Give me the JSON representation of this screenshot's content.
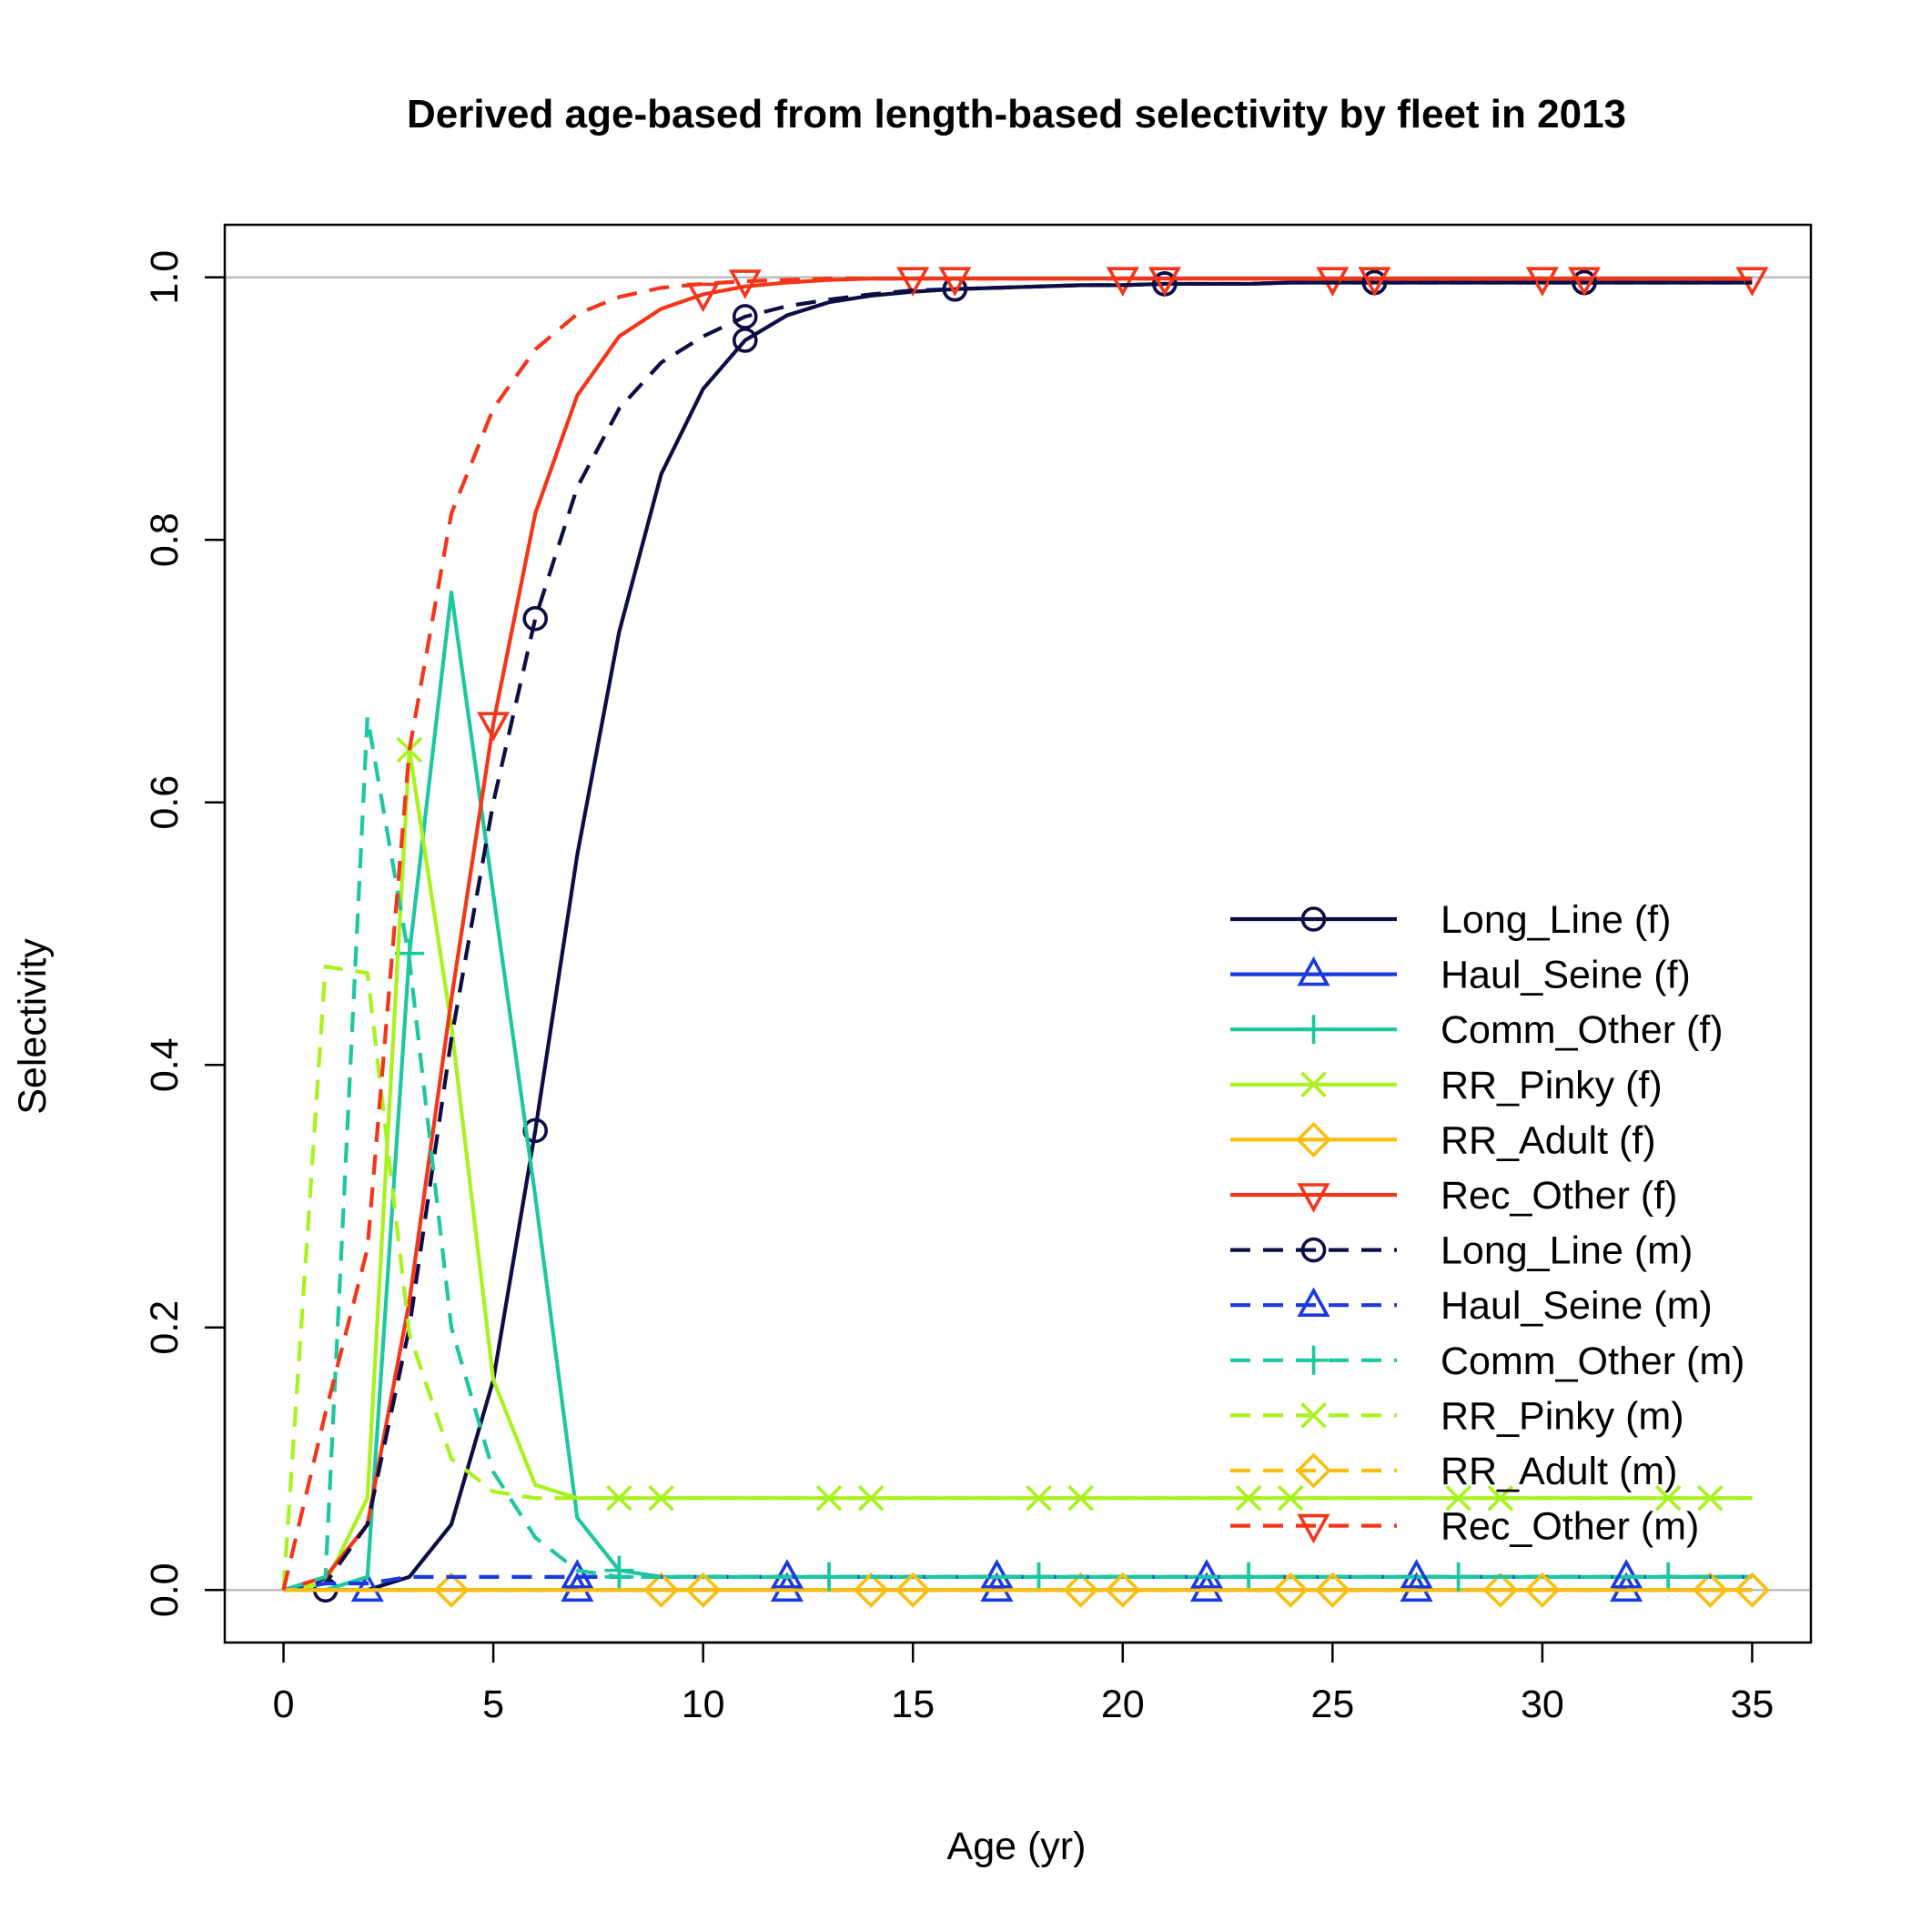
{
  "chart_data": {
    "type": "line",
    "title": "Derived age-based from length-based selectivity by fleet in 2013",
    "xlabel": "Age (yr)",
    "ylabel": "Selectivity",
    "xlim": [
      -1.4,
      36.4
    ],
    "ylim": [
      -0.04,
      1.04
    ],
    "x_ticks": [
      0,
      5,
      10,
      15,
      20,
      25,
      30,
      35
    ],
    "y_ticks": [
      0.0,
      0.2,
      0.4,
      0.6,
      0.8,
      1.0
    ],
    "y_tick_labels": [
      "0.0",
      "0.2",
      "0.4",
      "0.6",
      "0.8",
      "1.0"
    ],
    "reference_lines": [
      0,
      1
    ],
    "legend_position": "right",
    "x": [
      0,
      1,
      2,
      3,
      4,
      5,
      6,
      7,
      8,
      9,
      10,
      11,
      12,
      13,
      14,
      15,
      16,
      17,
      18,
      19,
      20,
      21,
      22,
      23,
      24,
      25,
      26,
      27,
      28,
      29,
      30,
      31,
      32,
      33,
      34,
      35
    ],
    "series": [
      {
        "name": "Long_Line (f)",
        "color": "#0d0d45",
        "dash": "solid",
        "marker": "circle",
        "marker_offset": 1,
        "values": [
          0,
          0,
          0,
          0.01,
          0.05,
          0.16,
          0.35,
          0.56,
          0.73,
          0.85,
          0.915,
          0.952,
          0.971,
          0.981,
          0.986,
          0.989,
          0.991,
          0.992,
          0.993,
          0.994,
          0.994,
          0.995,
          0.995,
          0.995,
          0.996,
          0.996,
          0.996,
          0.996,
          0.996,
          0.996,
          0.996,
          0.996,
          0.996,
          0.996,
          0.996,
          0.996
        ]
      },
      {
        "name": "Haul_Seine (f)",
        "color": "#1a3ae0",
        "dash": "solid",
        "marker": "triangle-up",
        "marker_offset": 2,
        "values": [
          0,
          0,
          0,
          0,
          0,
          0,
          0,
          0,
          0,
          0,
          0,
          0,
          0,
          0,
          0,
          0,
          0,
          0,
          0,
          0,
          0,
          0,
          0,
          0,
          0,
          0,
          0,
          0,
          0,
          0,
          0,
          0,
          0,
          0,
          0,
          0
        ]
      },
      {
        "name": "Comm_Other (f)",
        "color": "#1dc7a0",
        "dash": "solid",
        "marker": "plus",
        "marker_offset": 3,
        "values": [
          0,
          0,
          0.01,
          0.485,
          0.76,
          0.53,
          0.3,
          0.055,
          0.015,
          0.01,
          0.01,
          0.01,
          0.01,
          0.01,
          0.01,
          0.01,
          0.01,
          0.01,
          0.01,
          0.01,
          0.01,
          0.01,
          0.01,
          0.01,
          0.01,
          0.01,
          0.01,
          0.01,
          0.01,
          0.01,
          0.01,
          0.01,
          0.01,
          0.01,
          0.01,
          0.01
        ]
      },
      {
        "name": "RR_Pinky (f)",
        "color": "#a8f21d",
        "dash": "solid",
        "marker": "x",
        "marker_offset": 3,
        "values": [
          0,
          0.005,
          0.07,
          0.64,
          0.43,
          0.16,
          0.08,
          0.07,
          0.07,
          0.07,
          0.07,
          0.07,
          0.07,
          0.07,
          0.07,
          0.07,
          0.07,
          0.07,
          0.07,
          0.07,
          0.07,
          0.07,
          0.07,
          0.07,
          0.07,
          0.07,
          0.07,
          0.07,
          0.07,
          0.07,
          0.07,
          0.07,
          0.07,
          0.07,
          0.07,
          0.07
        ]
      },
      {
        "name": "RR_Adult (f)",
        "color": "#fbbd0e",
        "dash": "solid",
        "marker": "diamond",
        "marker_offset": 4,
        "values": [
          0,
          0,
          0,
          0,
          0,
          0,
          0,
          0,
          0,
          0,
          0,
          0,
          0,
          0,
          0,
          0,
          0,
          0,
          0,
          0,
          0,
          0,
          0,
          0,
          0,
          0,
          0,
          0,
          0,
          0,
          0,
          0,
          0,
          0,
          0,
          0
        ]
      },
      {
        "name": "Rec_Other (f)",
        "color": "#f5351a",
        "dash": "solid",
        "marker": "triangle-down",
        "marker_offset": 5,
        "values": [
          0,
          0.01,
          0.05,
          0.22,
          0.45,
          0.66,
          0.82,
          0.91,
          0.955,
          0.976,
          0.987,
          0.993,
          0.996,
          0.998,
          0.999,
          0.999,
          0.999,
          0.999,
          0.999,
          0.999,
          0.999,
          0.999,
          0.999,
          0.999,
          0.999,
          0.999,
          0.999,
          0.999,
          0.999,
          0.999,
          0.999,
          0.999,
          0.999,
          0.999,
          0.999,
          0.999
        ]
      },
      {
        "name": "Long_Line (m)",
        "color": "#0d0d45",
        "dash": "dashed",
        "marker": "circle",
        "marker_offset": 6,
        "values": [
          0,
          0.005,
          0.05,
          0.2,
          0.42,
          0.6,
          0.74,
          0.84,
          0.9,
          0.935,
          0.955,
          0.97,
          0.978,
          0.983,
          0.987,
          0.99,
          0.991,
          0.992,
          0.993,
          0.994,
          0.994,
          0.995,
          0.995,
          0.995,
          0.996,
          0.996,
          0.996,
          0.996,
          0.996,
          0.996,
          0.996,
          0.996,
          0.996,
          0.996,
          0.996,
          0.996
        ]
      },
      {
        "name": "Haul_Seine (m)",
        "color": "#1a3ae0",
        "dash": "dashed",
        "marker": "triangle-up",
        "marker_offset": 7,
        "values": [
          0,
          0.005,
          0.005,
          0.01,
          0.01,
          0.01,
          0.01,
          0.01,
          0.01,
          0.01,
          0.01,
          0.01,
          0.01,
          0.01,
          0.01,
          0.01,
          0.01,
          0.01,
          0.01,
          0.01,
          0.01,
          0.01,
          0.01,
          0.01,
          0.01,
          0.01,
          0.01,
          0.01,
          0.01,
          0.01,
          0.01,
          0.01,
          0.01,
          0.01,
          0.01,
          0.01
        ]
      },
      {
        "name": "Comm_Other (m)",
        "color": "#1dc7a0",
        "dash": "dashed",
        "marker": "plus",
        "marker_offset": 8,
        "values": [
          0,
          0.01,
          0.665,
          0.48,
          0.2,
          0.09,
          0.04,
          0.015,
          0.01,
          0.01,
          0.01,
          0.01,
          0.01,
          0.01,
          0.01,
          0.01,
          0.01,
          0.01,
          0.01,
          0.01,
          0.01,
          0.01,
          0.01,
          0.01,
          0.01,
          0.01,
          0.01,
          0.01,
          0.01,
          0.01,
          0.01,
          0.01,
          0.01,
          0.01,
          0.01,
          0.01
        ]
      },
      {
        "name": "RR_Pinky (m)",
        "color": "#a8f21d",
        "dash": "dashed",
        "marker": "x",
        "marker_offset": 9,
        "values": [
          0,
          0.475,
          0.47,
          0.195,
          0.1,
          0.075,
          0.07,
          0.07,
          0.07,
          0.07,
          0.07,
          0.07,
          0.07,
          0.07,
          0.07,
          0.07,
          0.07,
          0.07,
          0.07,
          0.07,
          0.07,
          0.07,
          0.07,
          0.07,
          0.07,
          0.07,
          0.07,
          0.07,
          0.07,
          0.07,
          0.07,
          0.07,
          0.07,
          0.07,
          0.07,
          0.07
        ]
      },
      {
        "name": "RR_Adult (m)",
        "color": "#fbbd0e",
        "dash": "dashed",
        "marker": "diamond",
        "marker_offset": 10,
        "values": [
          0,
          0,
          0,
          0,
          0,
          0,
          0,
          0,
          0,
          0,
          0,
          0,
          0,
          0,
          0,
          0,
          0,
          0,
          0,
          0,
          0,
          0,
          0,
          0,
          0,
          0,
          0,
          0,
          0,
          0,
          0,
          0,
          0,
          0,
          0,
          0
        ]
      },
      {
        "name": "Rec_Other (m)",
        "color": "#f5351a",
        "dash": "dashed",
        "marker": "triangle-down",
        "marker_offset": 11,
        "values": [
          0,
          0.135,
          0.26,
          0.64,
          0.82,
          0.9,
          0.945,
          0.972,
          0.985,
          0.992,
          0.995,
          0.997,
          0.998,
          0.999,
          0.999,
          0.999,
          0.999,
          0.999,
          0.999,
          0.999,
          0.999,
          0.999,
          0.999,
          0.999,
          0.999,
          0.999,
          0.999,
          0.999,
          0.999,
          0.999,
          0.999,
          0.999,
          0.999,
          0.999,
          0.999,
          0.999
        ]
      }
    ]
  }
}
